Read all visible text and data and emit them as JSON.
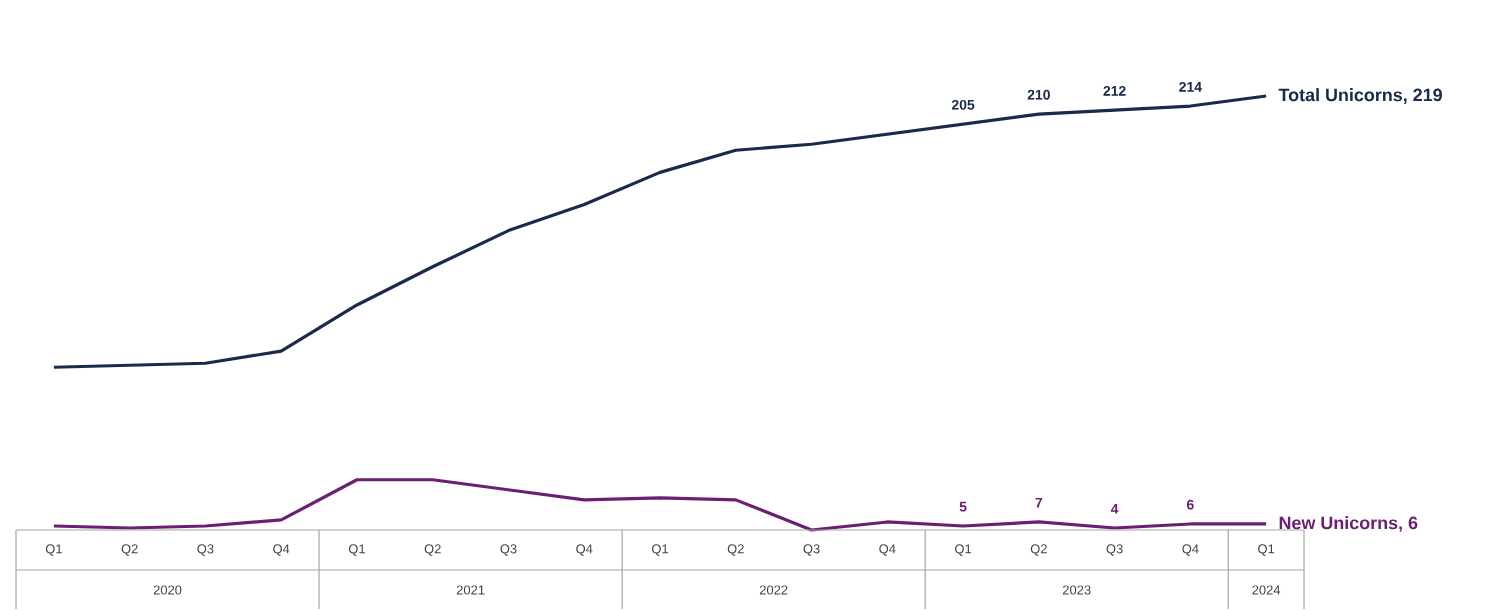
{
  "chart_data": {
    "type": "line",
    "categories": [
      "Q1",
      "Q2",
      "Q3",
      "Q4",
      "Q1",
      "Q2",
      "Q3",
      "Q4",
      "Q1",
      "Q2",
      "Q3",
      "Q4",
      "Q1",
      "Q2",
      "Q3",
      "Q4",
      "Q1"
    ],
    "series": [
      {
        "name": "Total Unicorns, 219",
        "color": "#1b2a4a",
        "values": [
          84,
          85,
          86,
          92,
          115,
          134,
          152,
          165,
          181,
          192,
          195,
          200,
          205,
          210,
          212,
          214,
          219
        ],
        "value_labels": [
          null,
          null,
          null,
          null,
          null,
          null,
          null,
          null,
          null,
          null,
          null,
          null,
          "205",
          "210",
          "212",
          "214",
          null
        ]
      },
      {
        "name": "New Unicorns, 6",
        "color": "#6b1f73",
        "values": [
          5,
          4,
          5,
          8,
          28,
          28,
          23,
          18,
          19,
          18,
          3,
          7,
          5,
          7,
          4,
          6,
          6
        ],
        "value_labels": [
          null,
          null,
          null,
          null,
          null,
          null,
          null,
          null,
          null,
          null,
          null,
          null,
          "5",
          "7",
          "4",
          "6",
          null
        ]
      }
    ],
    "annotations": [
      "2020",
      "2021",
      "2022",
      "2023",
      "2024"
    ],
    "marker": "none",
    "line_style": "solid",
    "tick_labels": "x"
  }
}
